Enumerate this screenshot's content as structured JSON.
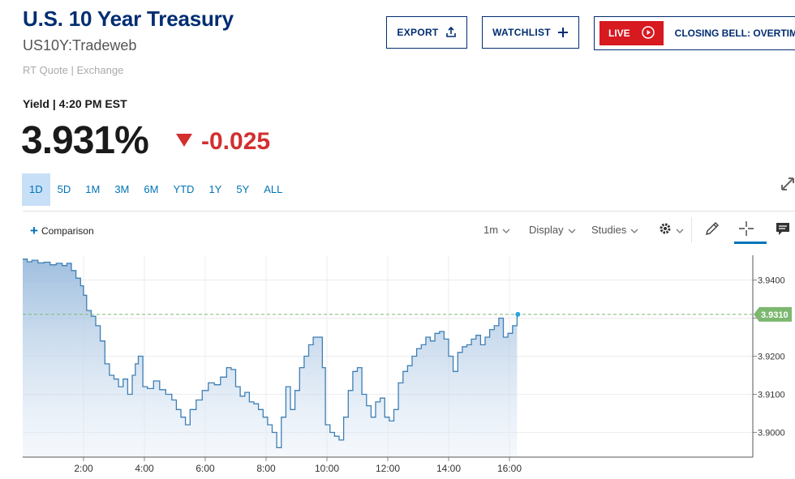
{
  "header": {
    "title": "U.S. 10 Year Treasury",
    "symbol": "US10Y:Tradeweb",
    "quote_source": "RT Quote | Exchange",
    "export_label": "EXPORT",
    "watchlist_label": "WATCHLIST",
    "live_badge": "LIVE",
    "live_text": "CLOSING BELL: OVERTIME"
  },
  "quote": {
    "yield_label": "Yield | 4:20 PM EST",
    "price": "3.931%",
    "change": "-0.025",
    "direction": "down"
  },
  "ranges": [
    {
      "label": "1D",
      "active": true
    },
    {
      "label": "5D",
      "active": false
    },
    {
      "label": "1M",
      "active": false
    },
    {
      "label": "3M",
      "active": false
    },
    {
      "label": "6M",
      "active": false
    },
    {
      "label": "YTD",
      "active": false
    },
    {
      "label": "1Y",
      "active": false
    },
    {
      "label": "5Y",
      "active": false
    },
    {
      "label": "ALL",
      "active": false
    }
  ],
  "toolbar": {
    "comparison_label": "Comparison",
    "interval_label": "1m",
    "display_label": "Display",
    "studies_label": "Studies"
  },
  "colors": {
    "brand": "#002d72",
    "link": "#0073b7",
    "down": "#d32f2f",
    "live": "#d71920",
    "line": "#3d7fb5",
    "last_price": "#7cb870"
  },
  "chart_data": {
    "type": "area",
    "x_tick_labels": [
      "2:00",
      "4:00",
      "6:00",
      "8:00",
      "10:00",
      "12:00",
      "14:00",
      "16:00"
    ],
    "y_tick_labels": [
      "3.9400",
      "3.9300",
      "3.9200",
      "3.9100",
      "3.9000"
    ],
    "xlim": [
      0,
      24
    ],
    "ylim": [
      3.8935,
      3.9465
    ],
    "last_value_label": "3.9310",
    "last_value": 3.931,
    "series": [
      {
        "x": [
          0.0,
          0.15,
          0.3,
          0.5,
          0.7,
          0.9,
          1.1,
          1.3,
          1.45,
          1.6,
          1.75,
          1.9,
          2.0,
          2.1,
          2.25,
          2.4,
          2.55,
          2.7,
          2.85,
          3.0,
          3.15,
          3.3,
          3.45,
          3.6,
          3.7,
          3.8,
          3.95,
          4.1,
          4.3,
          4.5,
          4.7,
          4.9,
          5.05,
          5.2,
          5.35,
          5.5,
          5.7,
          5.9,
          6.1,
          6.3,
          6.5,
          6.7,
          6.85,
          7.0,
          7.15,
          7.3,
          7.45,
          7.6,
          7.75,
          7.9,
          8.05,
          8.2,
          8.35,
          8.5,
          8.65,
          8.8,
          8.95,
          9.1,
          9.25,
          9.4,
          9.55,
          9.7,
          9.85,
          9.95,
          10.1,
          10.25,
          10.4,
          10.55,
          10.7,
          10.85,
          11.0,
          11.15,
          11.3,
          11.45,
          11.6,
          11.75,
          11.9,
          12.05,
          12.2,
          12.35,
          12.5,
          12.65,
          12.8,
          12.95,
          13.1,
          13.25,
          13.4,
          13.55,
          13.7,
          13.85,
          14.0,
          14.15,
          14.3,
          14.45,
          14.6,
          14.75,
          14.9,
          15.05,
          15.2,
          15.35,
          15.5,
          15.65,
          15.8,
          15.95,
          16.1,
          16.25
        ],
        "y": [
          3.9455,
          3.9448,
          3.9452,
          3.9445,
          3.9447,
          3.944,
          3.9444,
          3.9438,
          3.9444,
          3.9425,
          3.9405,
          3.9385,
          3.936,
          3.932,
          3.9305,
          3.928,
          3.924,
          3.918,
          3.915,
          3.914,
          3.912,
          3.914,
          3.91,
          3.915,
          3.918,
          3.92,
          3.912,
          3.9115,
          3.9135,
          3.9112,
          3.91,
          3.9085,
          3.906,
          3.904,
          3.902,
          3.906,
          3.9085,
          3.911,
          3.913,
          3.9125,
          3.9145,
          3.917,
          3.9165,
          3.912,
          3.9095,
          3.9105,
          3.908,
          3.9075,
          3.906,
          3.904,
          3.902,
          3.9,
          3.896,
          3.904,
          3.912,
          3.906,
          3.911,
          3.917,
          3.92,
          3.923,
          3.925,
          3.925,
          3.917,
          3.902,
          3.9,
          3.899,
          3.898,
          3.904,
          3.911,
          3.916,
          3.917,
          3.91,
          3.907,
          3.904,
          3.908,
          3.909,
          3.904,
          3.903,
          3.906,
          3.913,
          3.916,
          3.9175,
          3.92,
          3.922,
          3.923,
          3.925,
          3.924,
          3.926,
          3.9265,
          3.9245,
          3.92,
          3.916,
          3.921,
          3.9225,
          3.923,
          3.9245,
          3.9255,
          3.923,
          3.925,
          3.927,
          3.928,
          3.93,
          3.925,
          3.926,
          3.928,
          3.931
        ]
      }
    ]
  }
}
